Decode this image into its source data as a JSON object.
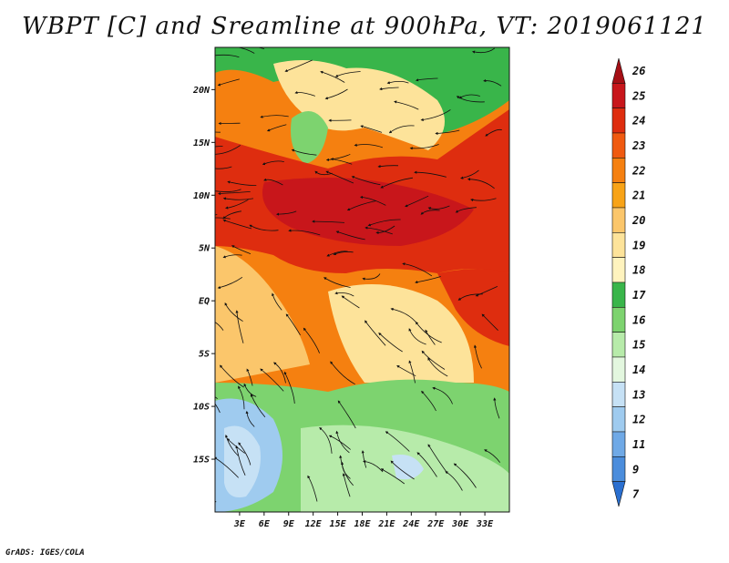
{
  "title": "WBPT [C] and Sreamline at 900hPa, VT: 2019061121",
  "footer": "GrADS: IGES/COLA",
  "map": {
    "lon_range": [
      0,
      36
    ],
    "lat_range": [
      -20,
      24
    ],
    "lon_ticks": [
      "3E",
      "6E",
      "9E",
      "12E",
      "15E",
      "18E",
      "21E",
      "24E",
      "27E",
      "30E",
      "33E"
    ],
    "lat_ticks": [
      "20N",
      "15N",
      "10N",
      "5N",
      "EQ",
      "5S",
      "10S",
      "15S"
    ]
  },
  "colorbar": {
    "labels": [
      "26",
      "25",
      "24",
      "23",
      "22",
      "21",
      "20",
      "19",
      "18",
      "17",
      "16",
      "15",
      "14",
      "13",
      "12",
      "11",
      "9",
      "7"
    ],
    "colors": [
      "#a50f15",
      "#c8161b",
      "#de2d0f",
      "#f05a10",
      "#f58010",
      "#f8a317",
      "#fbc66b",
      "#fde39a",
      "#fff3be",
      "#39b54a",
      "#7dd36f",
      "#b7ebaa",
      "#e3f7df",
      "#c6e1f5",
      "#9fcbef",
      "#6fa9e6",
      "#4b8ddc",
      "#2a6fd0"
    ]
  }
}
